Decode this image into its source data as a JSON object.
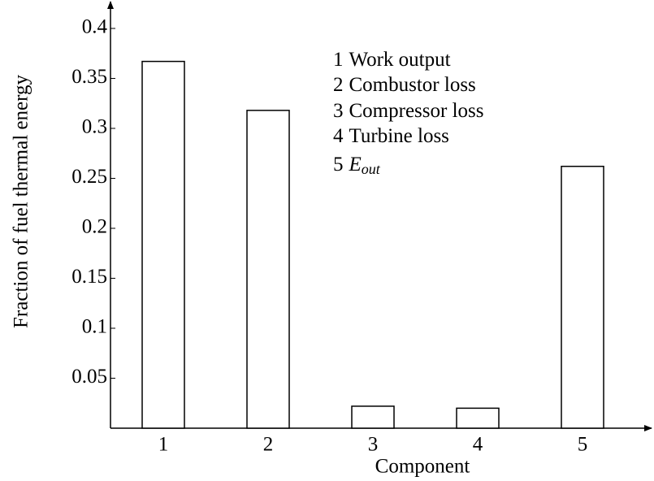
{
  "chart_data": {
    "type": "bar",
    "xlabel": "Component",
    "ylabel": "Fraction of fuel thermal energy",
    "categories": [
      "1",
      "2",
      "3",
      "4",
      "5"
    ],
    "values": [
      0.367,
      0.318,
      0.022,
      0.02,
      0.262
    ],
    "color": "#ffffff",
    "ylim": [
      0,
      0.4
    ],
    "yticks": [
      0.05,
      0.1,
      0.15,
      0.2,
      0.25,
      0.3,
      0.35,
      0.4
    ],
    "grid": false,
    "legend": [
      {
        "key": "1",
        "text": "Work output"
      },
      {
        "key": "2",
        "text": "Combustor loss"
      },
      {
        "key": "3",
        "text": "Compressor loss"
      },
      {
        "key": "4",
        "text": "Turbine loss"
      },
      {
        "key": "5",
        "text": "E",
        "sub": "out"
      }
    ]
  }
}
